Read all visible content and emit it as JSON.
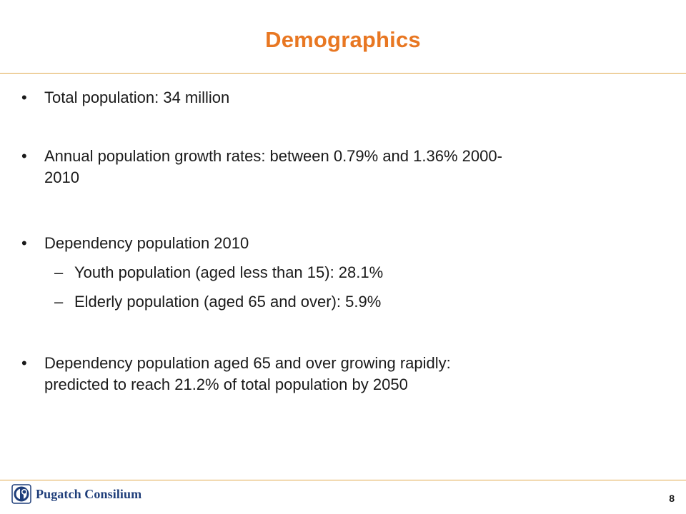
{
  "slide": {
    "title": "Demographics",
    "accent_color": "#e87722",
    "rule_color": "#e0a84a"
  },
  "bullets": [
    {
      "marker": "•",
      "text": "Total population: 34 million"
    },
    {
      "marker": "•",
      "line1": "Annual population growth rates: between 0.79% and 1.36% 2000-",
      "line2": "2010"
    },
    {
      "marker": "•",
      "text": "Dependency population 2010",
      "subitems": [
        {
          "marker": "–",
          "text": "Youth population (aged less than 15): 28.1%"
        },
        {
          "marker": "–",
          "text": "Elderly population (aged 65 and over): 5.9%"
        }
      ]
    },
    {
      "marker": "•",
      "line1": "Dependency population aged 65 and over growing rapidly:",
      "line2": "predicted to reach 21.2% of total population by 2050"
    }
  ],
  "footer": {
    "logo_text": "Pugatch Consilium",
    "logo_icon": "pugatch-consilium-logo-icon",
    "page_number": "8"
  }
}
